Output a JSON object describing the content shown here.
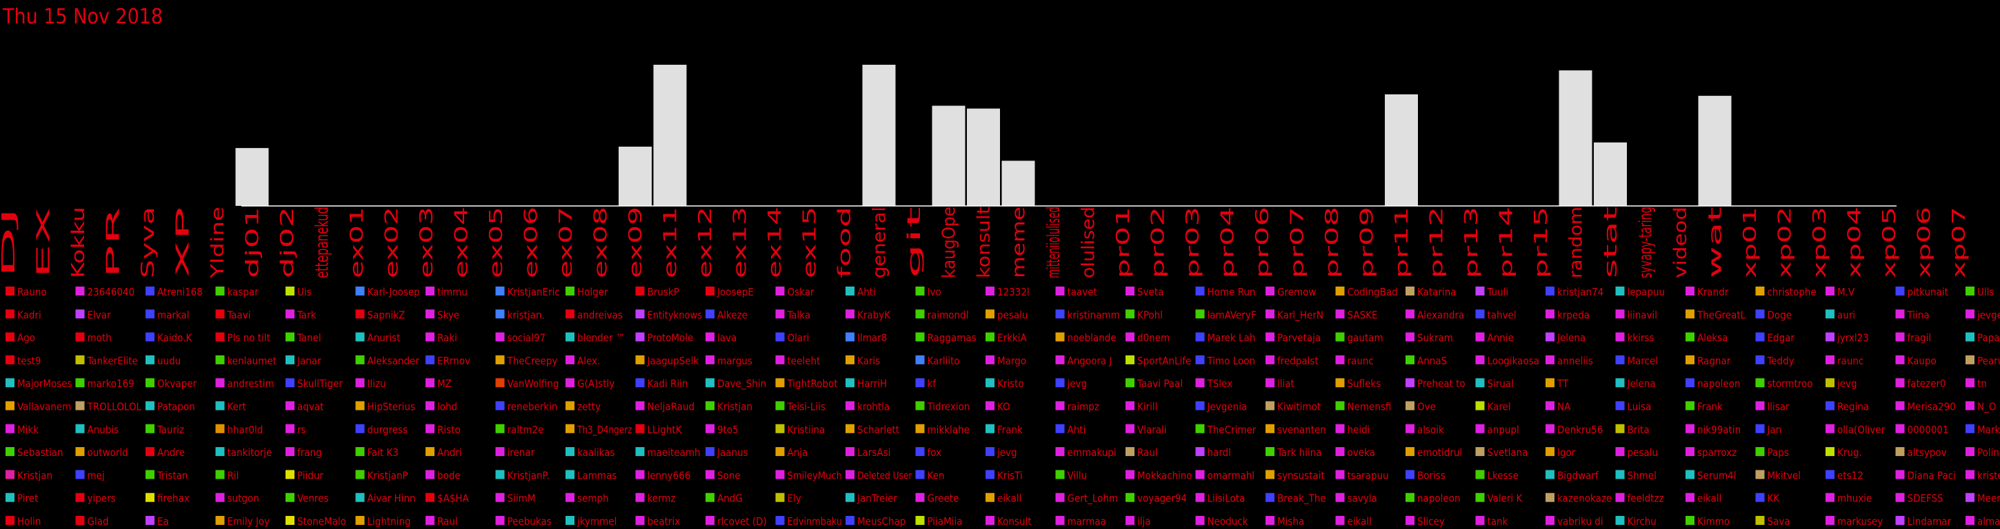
{
  "chart_data": {
    "type": "bar",
    "title": "Thu 15 Nov 2018",
    "xlabel": "",
    "ylabel": "",
    "grid": false,
    "ylim": [
      0,
      100
    ],
    "categories": [
      "DJ",
      "EX",
      "Kokku",
      "PR",
      "Syva",
      "XP",
      "Yldine",
      "dj01",
      "dj02",
      "ettepanekud",
      "ex01",
      "ex02",
      "ex03",
      "ex04",
      "ex05",
      "ex06",
      "ex07",
      "ex08",
      "ex09",
      "ex11",
      "ex12",
      "ex13",
      "ex14",
      "ex15",
      "food",
      "general",
      "git",
      "kaugOpe",
      "konsult",
      "meme",
      "mitteniiolulised",
      "olulised",
      "pr01",
      "pr02",
      "pr03",
      "pr04",
      "pr06",
      "pr07",
      "pr08",
      "pr09",
      "pr11",
      "pr12",
      "pr13",
      "pr14",
      "pr15",
      "random",
      "stat",
      "syvapy-taring",
      "videod",
      "wat",
      "xp01",
      "xp02",
      "xp03",
      "xp04",
      "xp05",
      "xp06",
      "xp07"
    ],
    "values": [
      0,
      0,
      0,
      0,
      0,
      0,
      0,
      41,
      0,
      0,
      0,
      0,
      0,
      0,
      0,
      0,
      0,
      0,
      42,
      100,
      0,
      0,
      0,
      0,
      0,
      100,
      0,
      71,
      69,
      32,
      0,
      0,
      0,
      0,
      0,
      0,
      0,
      0,
      0,
      0,
      79,
      0,
      0,
      0,
      0,
      96,
      45,
      0,
      0,
      78,
      0,
      0,
      0,
      0,
      0,
      0,
      0
    ],
    "legend": [
      [
        "Rauno",
        "#e4000f"
      ],
      [
        "Kadri",
        "#e4000f"
      ],
      [
        "Ago",
        "#e4000f"
      ],
      [
        "test9",
        "#e4000f"
      ],
      [
        "MajorMoses",
        "#20c0c0"
      ],
      [
        "Vallavanem",
        "#e5a000"
      ],
      [
        "Mikk",
        "#e020e0"
      ],
      [
        "Sebastian",
        "#40d000"
      ],
      [
        "Kristjan",
        "#e020a0"
      ],
      [
        "Piret",
        "#20c0c0"
      ],
      [
        "Holin",
        "#e4000f"
      ],
      [
        "23646040",
        "#e020e0"
      ],
      [
        "Elvar",
        "#c040ff"
      ],
      [
        "moth",
        "#e4000f"
      ],
      [
        "TankerElite",
        "#c0c000"
      ],
      [
        "marko169",
        "#40d000"
      ],
      [
        "TROLLOLOL",
        "#c0a060"
      ],
      [
        "Anubis",
        "#20c0c0"
      ],
      [
        "outworld",
        "#e0a000"
      ],
      [
        "mej",
        "#4040ff"
      ],
      [
        "yipers",
        "#e4000f"
      ],
      [
        "Glad",
        "#e4000f"
      ],
      [
        "Atreni168",
        "#4040ff"
      ],
      [
        "markal",
        "#4040ff"
      ],
      [
        "Kaido.K",
        "#4040ff"
      ],
      [
        "uudu",
        "#20c0c0"
      ],
      [
        "Okvaper",
        "#40d000"
      ],
      [
        "Patapon",
        "#20c0c0"
      ],
      [
        "Tauriz",
        "#40d000"
      ],
      [
        "Andre",
        "#e4000f"
      ],
      [
        "Tristan",
        "#40d000"
      ],
      [
        "firehax",
        "#e0e000"
      ],
      [
        "Ea",
        "#c040ff"
      ],
      [
        "kaspar",
        "#40d000"
      ],
      [
        "Taavi",
        "#e4000f"
      ],
      [
        "Pls no tilt",
        "#e4000f"
      ],
      [
        "kenlaumet",
        "#40d000"
      ],
      [
        "andrestim",
        "#e020e0"
      ],
      [
        "Kert",
        "#20c0c0"
      ],
      [
        "hhar0ld",
        "#e09000"
      ],
      [
        "tankitorje",
        "#20c0c0"
      ],
      [
        "Ril",
        "#40d000"
      ],
      [
        "sutgon",
        "#e020e0"
      ],
      [
        "Emily Joy",
        "#e0a000"
      ],
      [
        "Uis",
        "#c0e000"
      ],
      [
        "Tark",
        "#e020e0"
      ],
      [
        "Tanel",
        "#40d000"
      ],
      [
        "Janar",
        "#20c0c0"
      ],
      [
        "SkullTiger",
        "#4040ff"
      ],
      [
        "aqvat",
        "#e020e0"
      ],
      [
        "rs",
        "#e020e0"
      ],
      [
        "frang",
        "#e020e0"
      ],
      [
        "Piidur",
        "#e0e000"
      ],
      [
        "Venres",
        "#40d000"
      ],
      [
        "StoneMalo",
        "#e0e000"
      ],
      [
        "Karl-Joosep",
        "#4080ff"
      ],
      [
        "SapnikZ",
        "#e4000f"
      ],
      [
        "Anurist",
        "#20c0c0"
      ],
      [
        "Aleksander",
        "#40d000"
      ],
      [
        "Ilizu",
        "#e020e0"
      ],
      [
        "HipSterius",
        "#e0a000"
      ],
      [
        "durgress",
        "#4040ff"
      ],
      [
        "Fait K3",
        "#40d000"
      ],
      [
        "KristjanP",
        "#40d000"
      ],
      [
        "Aivar Hinn",
        "#20c0c0"
      ],
      [
        "Lightning",
        "#e0a000"
      ],
      [
        "timmu",
        "#e020e0"
      ],
      [
        "Skye",
        "#e020e0"
      ],
      [
        "Raki",
        "#e020e0"
      ],
      [
        "ERrnov",
        "#4040ff"
      ],
      [
        "MZ",
        "#e020e0"
      ],
      [
        "lohd",
        "#e020e0"
      ],
      [
        "Risto",
        "#e020e0"
      ],
      [
        "Andri",
        "#e0a000"
      ],
      [
        "bode",
        "#e020e0"
      ],
      [
        "$A$HA",
        "#e4000f"
      ],
      [
        "Raul",
        "#e020e0"
      ],
      [
        "KristjanEric",
        "#4080ff"
      ],
      [
        "kristjan.",
        "#4080ff"
      ],
      [
        "social97",
        "#e020e0"
      ],
      [
        "TheCreepy",
        "#e0a000"
      ],
      [
        "VanWolfing",
        "#e04000"
      ],
      [
        "reneberkin",
        "#4040ff"
      ],
      [
        "raltm2e",
        "#40d000"
      ],
      [
        "irenar",
        "#e020e0"
      ],
      [
        "KristjanP.",
        "#20c0c0"
      ],
      [
        "SiimM",
        "#e020e0"
      ],
      [
        "Peebukas",
        "#e020e0"
      ],
      [
        "Holger",
        "#40d000"
      ],
      [
        "andreivas",
        "#e4000f"
      ],
      [
        "blender ™",
        "#20c0c0"
      ],
      [
        "Alex.",
        "#e020e0"
      ],
      [
        "G(A)stly",
        "#e020e0"
      ],
      [
        "zetty",
        "#e0a000"
      ],
      [
        "Th3_D4ngerz",
        "#e0a000"
      ],
      [
        "kaalikas",
        "#20c0c0"
      ],
      [
        "Lammas",
        "#20c0c0"
      ],
      [
        "semph",
        "#e020e0"
      ],
      [
        "jkymmel",
        "#20c0c0"
      ],
      [
        "BruskP",
        "#e4000f"
      ],
      [
        "Entityknows",
        "#c040ff"
      ],
      [
        "ProtoMole",
        "#c040ff"
      ],
      [
        "JaagupSelk",
        "#e0a000"
      ],
      [
        "Kadi Riin",
        "#4040ff"
      ],
      [
        "NeljaRaud",
        "#e020e0"
      ],
      [
        "LLightK",
        "#e4000f"
      ],
      [
        "maeiteamh",
        "#20c0c0"
      ],
      [
        "lenny666",
        "#e020e0"
      ],
      [
        "kermz",
        "#e020e0"
      ],
      [
        "beatrix",
        "#e020e0"
      ],
      [
        "JoosepE",
        "#e4000f"
      ],
      [
        "Alkeze",
        "#4040ff"
      ],
      [
        "lava",
        "#e020e0"
      ],
      [
        "margus",
        "#e020e0"
      ],
      [
        "Dave_Shin",
        "#20c0c0"
      ],
      [
        "Kristjan",
        "#40d000"
      ],
      [
        "9to5",
        "#e020e0"
      ],
      [
        "Jaanus",
        "#4040ff"
      ],
      [
        "Sone",
        "#e020e0"
      ],
      [
        "AndG",
        "#40d000"
      ],
      [
        "rlcovet (D)",
        "#e020e0"
      ],
      [
        "Oskar",
        "#e020e0"
      ],
      [
        "Talka",
        "#e020e0"
      ],
      [
        "Olari",
        "#4040ff"
      ],
      [
        "teeleht",
        "#e020e0"
      ],
      [
        "TightRobot",
        "#e0a000"
      ],
      [
        "Teisi-Liis",
        "#40d000"
      ],
      [
        "Kristiina",
        "#c0c000"
      ],
      [
        "Anja",
        "#e0a000"
      ],
      [
        "SmileyMuch",
        "#e020e0"
      ],
      [
        "Ely",
        "#c0c000"
      ],
      [
        "Edvinmbaku",
        "#4040ff"
      ],
      [
        "Ahti",
        "#20c0c0"
      ],
      [
        "KrabyK",
        "#e020e0"
      ],
      [
        "Ilmar8",
        "#4080ff"
      ],
      [
        "Karis",
        "#e0a000"
      ],
      [
        "HarriH",
        "#20c0c0"
      ],
      [
        "krohtla",
        "#e020e0"
      ],
      [
        "Scharlett",
        "#e0a000"
      ],
      [
        "LarsAsi",
        "#e020e0"
      ],
      [
        "Deleted User",
        "#e020e0"
      ],
      [
        "JanTreier",
        "#20c0c0"
      ],
      [
        "MeusChap",
        "#4040ff"
      ],
      [
        "Ivo",
        "#40d000"
      ],
      [
        "raimondl",
        "#40d000"
      ],
      [
        "Raggamas",
        "#40d000"
      ],
      [
        "Karliito",
        "#4080ff"
      ],
      [
        "kf",
        "#4040ff"
      ],
      [
        "Tidrexion",
        "#40d000"
      ],
      [
        "mikklahe",
        "#e0a000"
      ],
      [
        "fox",
        "#4040ff"
      ],
      [
        "Ken",
        "#4040ff"
      ],
      [
        "Greete",
        "#e020e0"
      ],
      [
        "PiiaMiia",
        "#c0e000"
      ],
      [
        "12332l",
        "#e020e0"
      ],
      [
        "pesalu",
        "#e0a000"
      ],
      [
        "ErkkiA",
        "#40d000"
      ],
      [
        "Margo",
        "#e020e0"
      ],
      [
        "Kristo",
        "#20c0c0"
      ],
      [
        "KO",
        "#e020e0"
      ],
      [
        "Frank",
        "#20c0c0"
      ],
      [
        "jevg",
        "#4040ff"
      ],
      [
        "KrisTi",
        "#4040ff"
      ],
      [
        "eikall",
        "#e0a000"
      ],
      [
        "Konsult",
        "#e020e0"
      ],
      [
        "taavet",
        "#e020e0"
      ],
      [
        "kristinamm",
        "#4040ff"
      ],
      [
        "noeblande",
        "#e0a000"
      ],
      [
        "Angoora J",
        "#e020e0"
      ],
      [
        "jevg",
        "#4040ff"
      ],
      [
        "raimpz",
        "#e020e0"
      ],
      [
        "Ahti",
        "#4040ff"
      ],
      [
        "emmakupi",
        "#e020e0"
      ],
      [
        "Villu",
        "#40d000"
      ],
      [
        "Gert_Lohm",
        "#e020e0"
      ],
      [
        "marmaa",
        "#e020e0"
      ],
      [
        "Sveta",
        "#e020e0"
      ],
      [
        "KPohl",
        "#40d000"
      ],
      [
        "d0nem",
        "#e020e0"
      ],
      [
        "SportAnLife",
        "#c0e000"
      ],
      [
        "Taavi Paal",
        "#40d000"
      ],
      [
        "Kirill",
        "#e020e0"
      ],
      [
        "Vlarali",
        "#e020e0"
      ],
      [
        "Raul",
        "#c0a060"
      ],
      [
        "Mokkachino",
        "#e020e0"
      ],
      [
        "voyager94",
        "#40d000"
      ],
      [
        "ilja",
        "#e020e0"
      ],
      [
        "Home Run",
        "#4040ff"
      ],
      [
        "lamAVeryF",
        "#40d000"
      ],
      [
        "Marek Lah",
        "#4040ff"
      ],
      [
        "Timo Loon",
        "#4040ff"
      ],
      [
        "TSlex",
        "#e020e0"
      ],
      [
        "Jevgenia",
        "#4040ff"
      ],
      [
        "TheCrimer",
        "#40d000"
      ],
      [
        "hardl",
        "#c040ff"
      ],
      [
        "omarmahl",
        "#e020e0"
      ],
      [
        "LiisiLota",
        "#e020e0"
      ],
      [
        "Neoduck",
        "#e020e0"
      ],
      [
        "Gremow",
        "#e020e0"
      ],
      [
        "Karl_HerN",
        "#e020e0"
      ],
      [
        "Parvetaja",
        "#e020e0"
      ],
      [
        "fredpalst",
        "#e020e0"
      ],
      [
        "lliat",
        "#e020e0"
      ],
      [
        "Kiwitimot",
        "#c0a060"
      ],
      [
        "svenanten",
        "#e0a000"
      ],
      [
        "Tark hiina",
        "#40d000"
      ],
      [
        "synsustait",
        "#e0a000"
      ],
      [
        "Break_The",
        "#4040ff"
      ],
      [
        "Misha",
        "#e020e0"
      ],
      [
        "CodingBad",
        "#e0a000"
      ],
      [
        "SASKE",
        "#e020e0"
      ],
      [
        "gautam",
        "#40d000"
      ],
      [
        "raunc",
        "#e020e0"
      ],
      [
        "Sufleks",
        "#e0a000"
      ],
      [
        "Nemensfi",
        "#40d000"
      ],
      [
        "heidi",
        "#e020e0"
      ],
      [
        "oveka",
        "#e020e0"
      ],
      [
        "tsarapuu",
        "#e020e0"
      ],
      [
        "savyla",
        "#e020e0"
      ],
      [
        "eikall",
        "#e020e0"
      ],
      [
        "Katarina",
        "#c0a060"
      ],
      [
        "Alexandra",
        "#e020e0"
      ],
      [
        "Sukram",
        "#e020e0"
      ],
      [
        "AnnaS",
        "#40d000"
      ],
      [
        "Preheat to",
        "#c040ff"
      ],
      [
        "Ove",
        "#c0a060"
      ],
      [
        "alsoik",
        "#e020e0"
      ],
      [
        "emotidrul",
        "#e0a000"
      ],
      [
        "Boriss",
        "#4040ff"
      ],
      [
        "napoleon",
        "#40d000"
      ],
      [
        "Slicey",
        "#e020e0"
      ],
      [
        "Tuuli",
        "#c040ff"
      ],
      [
        "tahvel",
        "#4040ff"
      ],
      [
        "Annie",
        "#e020e0"
      ],
      [
        "Loogikaosa",
        "#e020e0"
      ],
      [
        "Sirual",
        "#20c0c0"
      ],
      [
        "Karel",
        "#c0e000"
      ],
      [
        "anpupl",
        "#e020e0"
      ],
      [
        "Svetlana",
        "#c0a060"
      ],
      [
        "Lkesse",
        "#40d000"
      ],
      [
        "Valeri K",
        "#40d000"
      ],
      [
        "tank",
        "#e020e0"
      ],
      [
        "kristjan74",
        "#4040ff"
      ],
      [
        "krpeda",
        "#e020e0"
      ],
      [
        "Jelena",
        "#c040ff"
      ],
      [
        "anneliis",
        "#e020e0"
      ],
      [
        "TT",
        "#e0a000"
      ],
      [
        "NA",
        "#e020e0"
      ],
      [
        "Denkru56",
        "#e020e0"
      ],
      [
        "Igor",
        "#e0a000"
      ],
      [
        "Bigdwarf",
        "#20c0c0"
      ],
      [
        "kazenokaze",
        "#c0a060"
      ],
      [
        "vabriku di",
        "#e020e0"
      ],
      [
        "lepapuu",
        "#20c0c0"
      ],
      [
        "liinavil",
        "#e020e0"
      ],
      [
        "kkirss",
        "#e020e0"
      ],
      [
        "Marcel",
        "#4040ff"
      ],
      [
        "Jelena",
        "#20c0c0"
      ],
      [
        "Luisa",
        "#4040ff"
      ],
      [
        "Brita",
        "#c0c000"
      ],
      [
        "pesalu",
        "#e020e0"
      ],
      [
        "Shmel",
        "#20c0c0"
      ],
      [
        "feeldtzz",
        "#e020e0"
      ],
      [
        "Kirchu",
        "#20c0c0"
      ],
      [
        "Krandr",
        "#e020e0"
      ],
      [
        "TheGreatL",
        "#e0a000"
      ],
      [
        "Aleksa",
        "#40d000"
      ],
      [
        "Ragnar",
        "#e0a000"
      ],
      [
        "napoleon",
        "#4040ff"
      ],
      [
        "Frank",
        "#40d000"
      ],
      [
        "nik99atin",
        "#e020e0"
      ],
      [
        "sparroxz",
        "#e020e0"
      ],
      [
        "Serum4l",
        "#20c0c0"
      ],
      [
        "eikall",
        "#e020e0"
      ],
      [
        "Kimmo",
        "#40d000"
      ],
      [
        "christophe",
        "#e0a000"
      ],
      [
        "Doge",
        "#4040ff"
      ],
      [
        "Edgar",
        "#4040ff"
      ],
      [
        "Teddy",
        "#4040ff"
      ],
      [
        "stormtroo",
        "#40d000"
      ],
      [
        "llisar",
        "#e020e0"
      ],
      [
        "Jan",
        "#4040ff"
      ],
      [
        "Paps",
        "#40d000"
      ],
      [
        "Mkitvel",
        "#c0a060"
      ],
      [
        "KK",
        "#4040ff"
      ],
      [
        "Sava",
        "#c0c000"
      ],
      [
        "M.V",
        "#e020e0"
      ],
      [
        "auri",
        "#20c0c0"
      ],
      [
        "jyrxl23",
        "#c040ff"
      ],
      [
        "raunc",
        "#e020e0"
      ],
      [
        "jevg",
        "#c0c000"
      ],
      [
        "Regina",
        "#4040ff"
      ],
      [
        "olla(Oliver",
        "#e020e0"
      ],
      [
        "Krug.",
        "#c0e000"
      ],
      [
        "ets12",
        "#4040ff"
      ],
      [
        "mhuxie",
        "#e020e0"
      ],
      [
        "markusey",
        "#e020e0"
      ],
      [
        "pitkunait",
        "#4040ff"
      ],
      [
        "Tiina",
        "#e020e0"
      ],
      [
        "fragil",
        "#e020e0"
      ],
      [
        "Kaupo",
        "#e020e0"
      ],
      [
        "fatezer0",
        "#e020e0"
      ],
      [
        "Merisa290",
        "#e020e0"
      ],
      [
        "0000001",
        "#e020e0"
      ],
      [
        "altsypov",
        "#c0a060"
      ],
      [
        "Diana Paci",
        "#e020e0"
      ],
      [
        "SDEFSS",
        "#e020e0"
      ],
      [
        "Lindamar",
        "#c040ff"
      ],
      [
        "Ulls",
        "#40d000"
      ],
      [
        "jevgen",
        "#e020e0"
      ],
      [
        "PapaSay",
        "#20c0c0"
      ],
      [
        "Pearu Pu",
        "#c0a060"
      ],
      [
        "tn",
        "#e020e0"
      ],
      [
        "N_O",
        "#e020e0"
      ],
      [
        "MarkG",
        "#4040ff"
      ],
      [
        "Polina",
        "#e020e0"
      ],
      [
        "kristel",
        "#e020e0"
      ],
      [
        "Meeri",
        "#c040ff"
      ],
      [
        "almannd",
        "#e020e0"
      ]
    ]
  }
}
